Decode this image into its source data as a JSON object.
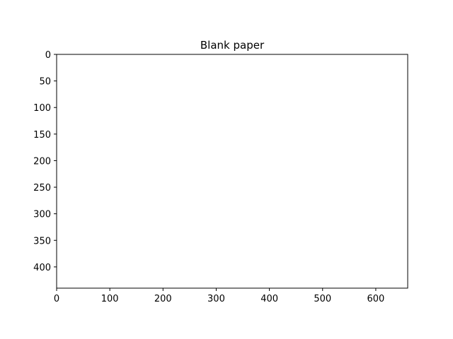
{
  "chart_data": {
    "type": "image",
    "title": "Blank paper",
    "xlabel": "",
    "ylabel": "",
    "xlim": [
      0,
      660
    ],
    "ylim": [
      440,
      0
    ],
    "y_inverted": true,
    "x_ticks": [
      0,
      100,
      200,
      300,
      400,
      500,
      600
    ],
    "y_ticks": [
      0,
      50,
      100,
      150,
      200,
      250,
      300,
      350,
      400
    ],
    "grid": false,
    "series": [],
    "image_fill": "#ffffff"
  },
  "colors": {
    "background": "#ffffff",
    "axes": "#000000",
    "text": "#000000"
  }
}
